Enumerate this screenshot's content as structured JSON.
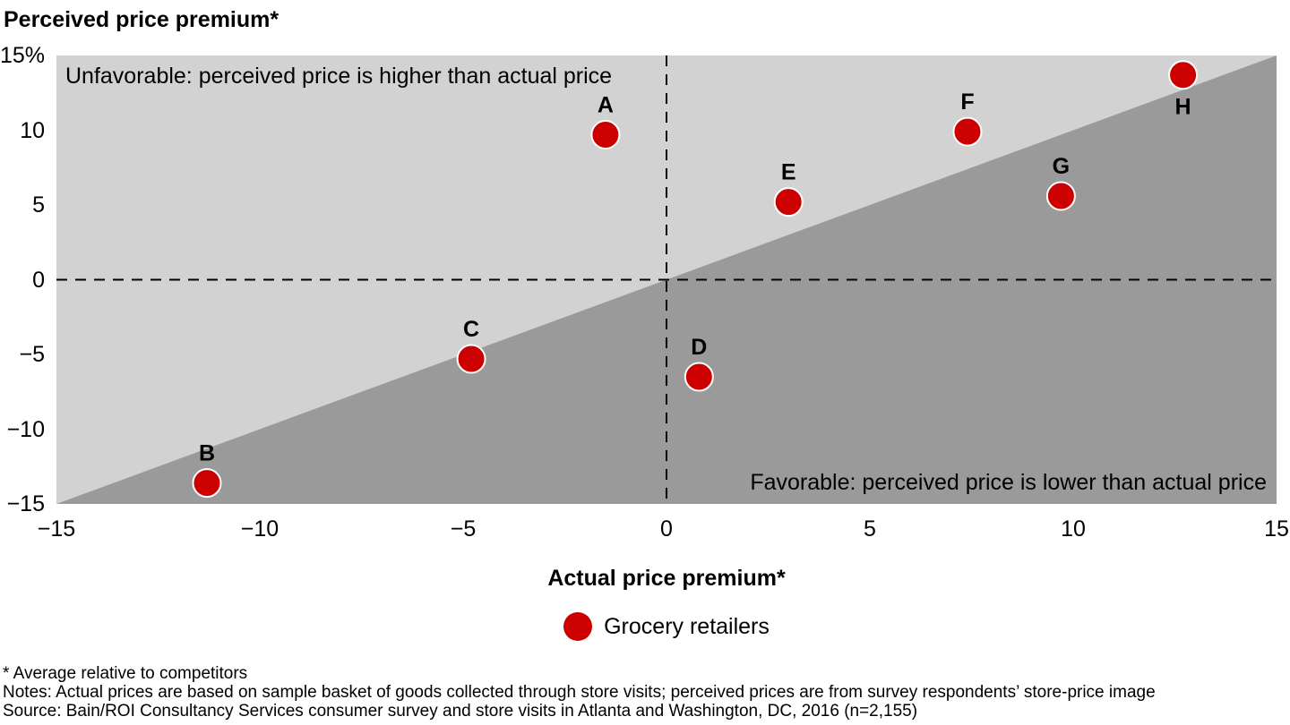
{
  "chart_data": {
    "type": "scatter",
    "y_axis_title": "Perceived price premium*",
    "x_axis_title": "Actual price premium*",
    "xlim": [
      -15,
      15
    ],
    "ylim": [
      -15,
      15
    ],
    "grid": false,
    "x_ticks": [
      {
        "label": "−15",
        "value": -15
      },
      {
        "label": "−10",
        "value": -10
      },
      {
        "label": "−5",
        "value": -5
      },
      {
        "label": "0",
        "value": 0
      },
      {
        "label": "5",
        "value": 5
      },
      {
        "label": "10",
        "value": 10
      },
      {
        "label": "15",
        "value": 15
      }
    ],
    "y_ticks": [
      {
        "label": "15%",
        "value": 15
      },
      {
        "label": "10",
        "value": 10
      },
      {
        "label": "5",
        "value": 5
      },
      {
        "label": "0",
        "value": 0
      },
      {
        "label": "−5",
        "value": -5
      },
      {
        "label": "−10",
        "value": -10
      },
      {
        "label": "−15",
        "value": -15
      }
    ],
    "reference_lines": [
      {
        "name": "zero-vertical",
        "axis": "x",
        "value": 0,
        "style": "dashed"
      },
      {
        "name": "zero-horizontal",
        "axis": "y",
        "value": 0,
        "style": "dashed"
      },
      {
        "name": "parity-diagonal",
        "from": [
          -15,
          -15
        ],
        "to": [
          15,
          15
        ],
        "style": "region-boundary"
      }
    ],
    "regions": [
      {
        "name": "unfavorable",
        "label": "Unfavorable: perceived price is higher than actual price",
        "color": "#D2D2D2",
        "position": "above-diagonal"
      },
      {
        "name": "favorable",
        "label": "Favorable: perceived price is lower than actual price",
        "color": "#9A9A9A",
        "position": "below-diagonal"
      }
    ],
    "series": [
      {
        "name": "Grocery retailers",
        "color": "#CC0000",
        "marker": {
          "shape": "circle",
          "radius": 15.5,
          "stroke": "#FFFFFF",
          "stroke_width": 2
        },
        "points": [
          {
            "label": "A",
            "x": -1.5,
            "y": 9.7,
            "label_position": "above"
          },
          {
            "label": "B",
            "x": -11.3,
            "y": -13.6,
            "label_position": "above"
          },
          {
            "label": "C",
            "x": -4.8,
            "y": -5.3,
            "label_position": "above"
          },
          {
            "label": "D",
            "x": 0.8,
            "y": -6.5,
            "label_position": "above"
          },
          {
            "label": "E",
            "x": 3.0,
            "y": 5.2,
            "label_position": "above"
          },
          {
            "label": "F",
            "x": 7.4,
            "y": 9.9,
            "label_position": "above"
          },
          {
            "label": "G",
            "x": 9.7,
            "y": 5.6,
            "label_position": "above"
          },
          {
            "label": "H",
            "x": 12.7,
            "y": 13.7,
            "label_position": "below"
          }
        ]
      }
    ],
    "legend_position": "bottom-center",
    "colors": {
      "dashed_line": "#000000",
      "text": "#000000",
      "background": "#FFFFFF"
    }
  },
  "legend": {
    "items": [
      {
        "label": "Grocery retailers",
        "color": "#CC0000"
      }
    ]
  },
  "footnotes": [
    "* Average relative to competitors",
    "Notes: Actual prices are based on sample basket of goods collected through store visits; perceived prices are from survey respondents’ store-price image",
    "Source: Bain/ROI Consultancy Services consumer survey and store visits in Atlanta and Washington, DC, 2016 (n=2,155)"
  ]
}
